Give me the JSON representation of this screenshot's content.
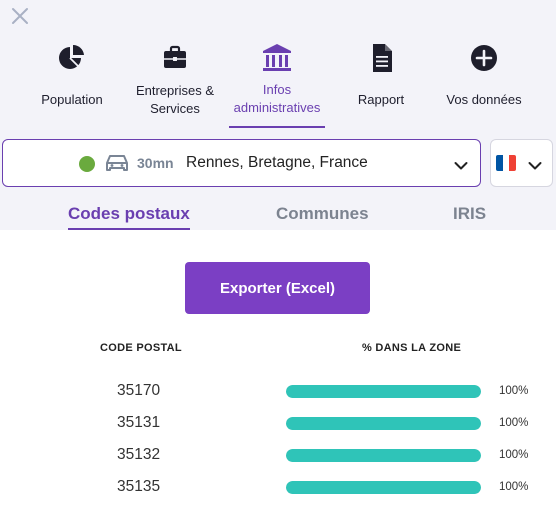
{
  "nav": {
    "items": [
      {
        "label": "Population",
        "icon": "pie-chart-icon",
        "active": false
      },
      {
        "label": "Entreprises &\nServices",
        "icon": "briefcase-icon",
        "active": false
      },
      {
        "label": "Infos\nadministratives",
        "icon": "institution-icon",
        "active": true
      },
      {
        "label": "Rapport",
        "icon": "document-icon",
        "active": false
      },
      {
        "label": "Vos données",
        "icon": "add-circle-icon",
        "active": false
      }
    ]
  },
  "location": {
    "duration": "30mn",
    "place": "Rennes, Bretagne, France",
    "status_color": "#6aaa3e",
    "mode_icon": "car-icon"
  },
  "country": {
    "flag": "france-flag-icon",
    "colors": [
      "#0055a4",
      "#ffffff",
      "#ef4135"
    ]
  },
  "tabs": [
    {
      "label": "Codes postaux",
      "active": true
    },
    {
      "label": "Communes",
      "active": false
    },
    {
      "label": "IRIS",
      "active": false
    }
  ],
  "export_label": "Exporter (Excel)",
  "table": {
    "headers": [
      "CODE POSTAL",
      "% DANS LA ZONE"
    ],
    "rows": [
      {
        "code": "35170",
        "percent_value": 100,
        "percent": "100%"
      },
      {
        "code": "35131",
        "percent_value": 100,
        "percent": "100%"
      },
      {
        "code": "35132",
        "percent_value": 100,
        "percent": "100%"
      },
      {
        "code": "35135",
        "percent_value": 100,
        "percent": "100%"
      }
    ]
  },
  "colors": {
    "accent": "#6a3fb0",
    "button": "#7b3fc4",
    "bar": "#2fc4b8"
  }
}
